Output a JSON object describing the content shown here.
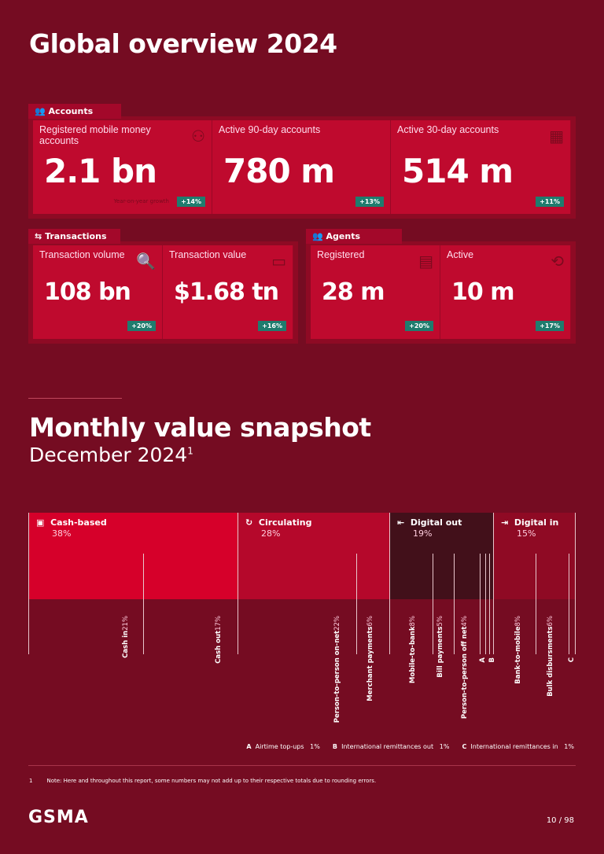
{
  "title": "Global overview 2024",
  "accounts": {
    "tab": "Accounts",
    "cards": [
      {
        "label": "Registered mobile money accounts",
        "value": "2.1 bn",
        "growth_label": "Year-on-year growth",
        "growth": "+14%",
        "icon": "users-icon"
      },
      {
        "label": "Active 90-day accounts",
        "value": "780 m",
        "growth": "+13%"
      },
      {
        "label": "Active 30-day accounts",
        "value": "514 m",
        "growth": "+11%",
        "icon": "calendar-icon"
      }
    ]
  },
  "transactions": {
    "tab": "Transactions",
    "cards": [
      {
        "label": "Transaction volume",
        "value": "108 bn",
        "growth": "+20%",
        "icon": "search-chart-icon"
      },
      {
        "label": "Transaction value",
        "value": "$1.68 tn",
        "growth": "+16%",
        "icon": "money-icon"
      }
    ]
  },
  "agents": {
    "tab": "Agents",
    "cards": [
      {
        "label": "Registered",
        "value": "28 m",
        "growth": "+20%",
        "icon": "id-card-icon"
      },
      {
        "label": "Active",
        "value": "10 m",
        "growth": "+17%",
        "icon": "exchange-users-icon"
      }
    ]
  },
  "snapshot": {
    "title": "Monthly value snapshot",
    "subtitle": "December 2024",
    "sup": "1"
  },
  "chart_data": {
    "type": "bar",
    "segments": [
      {
        "name": "Cash-based",
        "pct": "38%",
        "color": "#d6002a",
        "items": [
          {
            "name": "Cash in",
            "pct": "21%"
          },
          {
            "name": "Cash out",
            "pct": "17%"
          }
        ]
      },
      {
        "name": "Circulating",
        "pct": "28%",
        "color": "#b5082b",
        "items": [
          {
            "name": "Person-to-person on-net",
            "pct": "22%"
          },
          {
            "name": "Merchant payments",
            "pct": "6%"
          }
        ]
      },
      {
        "name": "Digital out",
        "pct": "19%",
        "color": "#42101a",
        "items": [
          {
            "name": "Mobile-to-bank",
            "pct": "8%"
          },
          {
            "name": "Bill payments",
            "pct": "5%"
          },
          {
            "name": "Person-to-person off net",
            "pct": "4%"
          },
          {
            "name": "A"
          },
          {
            "name": "B"
          }
        ]
      },
      {
        "name": "Digital in",
        "pct": "15%",
        "color": "#8f0a24",
        "items": [
          {
            "name": "Bank-to-mobile",
            "pct": "8%"
          },
          {
            "name": "Bulk disbursments",
            "pct": "6%"
          },
          {
            "name": "C"
          }
        ]
      }
    ]
  },
  "legend": [
    {
      "key": "A",
      "label": "Airtime top-ups",
      "pct": "1%"
    },
    {
      "key": "B",
      "label": "International remittances out",
      "pct": "1%"
    },
    {
      "key": "C",
      "label": "International remittances in",
      "pct": "1%"
    }
  ],
  "footnote": {
    "num": "1",
    "text": "Note: Here and throughout this report, some numbers may not add up to their respective totals due to rounding errors."
  },
  "logo": "GSMA",
  "page": "10 / 98"
}
